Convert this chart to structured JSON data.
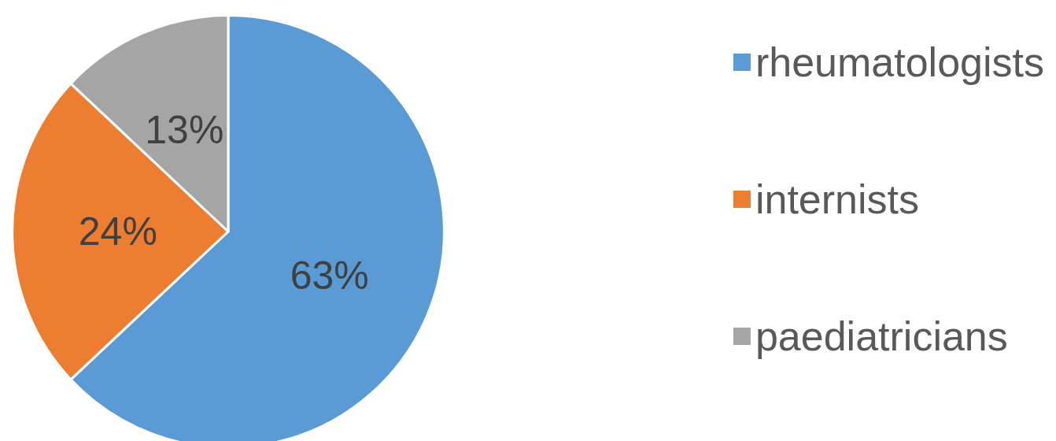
{
  "chart_data": {
    "type": "pie",
    "categories": [
      "rheumatologists",
      "internists",
      "paediatricians"
    ],
    "values": [
      63,
      24,
      13
    ],
    "colors": [
      "#5b9bd5",
      "#ed7d31",
      "#a5a5a5"
    ],
    "value_labels": [
      "63%",
      "24%",
      "13%"
    ],
    "legend": "right"
  }
}
